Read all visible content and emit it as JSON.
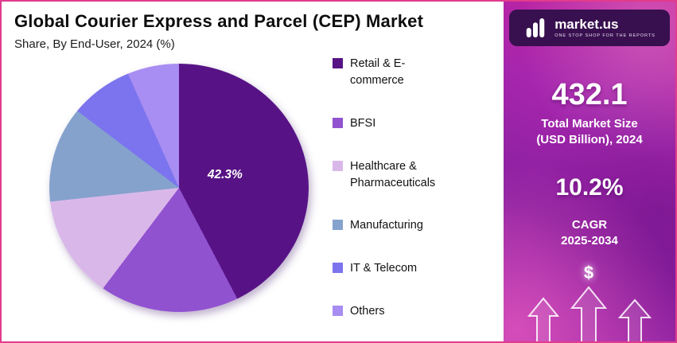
{
  "header": {
    "title": "Global Courier Express and Parcel (CEP) Market",
    "subtitle": "Share, By End-User, 2024 (%)"
  },
  "chart_data": {
    "type": "pie",
    "title": "Global Courier Express and Parcel (CEP) Market Share, By End-User, 2024 (%)",
    "labels": [
      "Retail & E-commerce",
      "BFSI",
      "Healthcare & Pharmaceuticals",
      "Manufacturing",
      "IT & Telecom",
      "Others"
    ],
    "values": [
      42.3,
      18.0,
      13.0,
      12.0,
      8.0,
      6.7
    ],
    "colors": [
      "#571385",
      "#9152d0",
      "#d9b8e9",
      "#85a2cd",
      "#7b74ee",
      "#a88df2"
    ],
    "data_label": "42.3%",
    "data_label_slice": "Retail & E-commerce",
    "legend_position": "right",
    "start_angle_deg": 0,
    "direction": "clockwise"
  },
  "sidebar": {
    "brand": {
      "name": "market.us",
      "tagline": "ONE STOP SHOP FOR THE REPORTS"
    },
    "market_size_value": "432.1",
    "market_size_label_line1": "Total Market Size",
    "market_size_label_line2": "(USD Billion), 2024",
    "cagr_value": "10.2%",
    "cagr_label_line1": "CAGR",
    "cagr_label_line2": "2025-2034",
    "dollar_symbol": "$"
  }
}
